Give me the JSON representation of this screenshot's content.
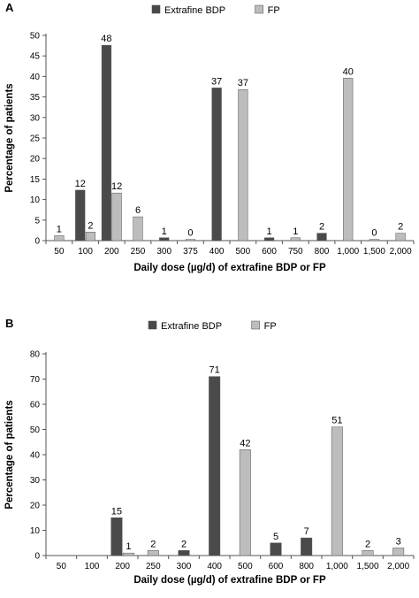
{
  "chart_data": [
    {
      "panel_label": "A",
      "type": "bar",
      "categories": [
        "50",
        "100",
        "200",
        "250",
        "300",
        "375",
        "400",
        "500",
        "600",
        "750",
        "800",
        "1,000",
        "1,500",
        "2,000"
      ],
      "series": [
        {
          "name": "Extrafine BDP",
          "color": "#4a4a4a",
          "values": [
            null,
            12.3,
            47.6,
            null,
            0.7,
            null,
            37.2,
            null,
            0.7,
            null,
            1.8,
            null,
            null,
            null
          ],
          "labels": [
            "",
            "12",
            "48",
            "",
            "1",
            "",
            "37",
            "",
            "1",
            "",
            "2",
            "",
            "",
            ""
          ]
        },
        {
          "name": "FP",
          "color": "#bdbdbd",
          "values": [
            1.2,
            2.1,
            11.6,
            5.8,
            null,
            0.3,
            null,
            36.8,
            null,
            0.7,
            null,
            39.6,
            0.3,
            1.8
          ],
          "labels": [
            "1",
            "2",
            "12",
            "6",
            "",
            "0",
            "",
            "37",
            "",
            "1",
            "",
            "40",
            "0",
            "2"
          ]
        }
      ],
      "xlabel": "Daily dose (µg/d) of extrafine BDP or FP",
      "ylabel": "Percentage of patients",
      "ylim": [
        0,
        50
      ],
      "yticks": [
        0,
        5,
        10,
        15,
        20,
        25,
        30,
        35,
        40,
        45,
        50
      ],
      "grid": false,
      "legend_position": "top-center"
    },
    {
      "panel_label": "B",
      "type": "bar",
      "categories": [
        "50",
        "100",
        "200",
        "250",
        "300",
        "400",
        "500",
        "600",
        "800",
        "1,000",
        "1,500",
        "2,000"
      ],
      "series": [
        {
          "name": "Extrafine BDP",
          "color": "#4a4a4a",
          "values": [
            null,
            null,
            15,
            null,
            2,
            71,
            null,
            5,
            7,
            null,
            null,
            null
          ],
          "labels": [
            "",
            "",
            "15",
            "",
            "2",
            "71",
            "",
            "5",
            "7",
            "",
            "",
            ""
          ]
        },
        {
          "name": "FP",
          "color": "#bdbdbd",
          "values": [
            null,
            null,
            1,
            2,
            null,
            null,
            42,
            null,
            null,
            51,
            2,
            3
          ],
          "labels": [
            "",
            "",
            "1",
            "2",
            "",
            "",
            "42",
            "",
            "",
            "51",
            "2",
            "3"
          ]
        }
      ],
      "xlabel": "Daily dose (µg/d) of extrafine BDP or FP",
      "ylabel": "Percentage of patients",
      "ylim": [
        0,
        80
      ],
      "yticks": [
        0,
        10,
        20,
        30,
        40,
        50,
        60,
        70,
        80
      ],
      "grid": false,
      "legend_position": "top-center"
    }
  ]
}
